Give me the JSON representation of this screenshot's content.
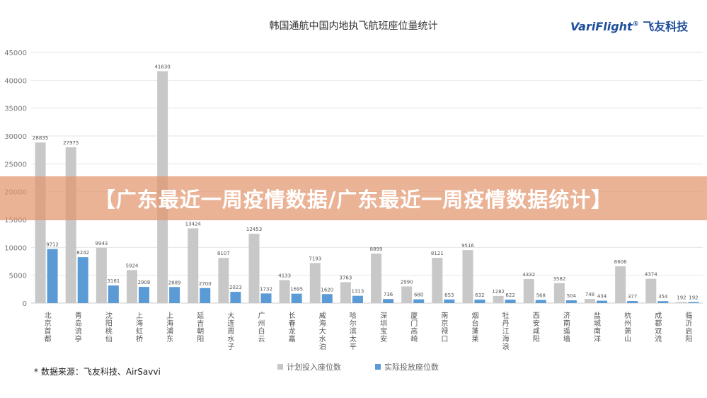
{
  "colors": {
    "planned": "#c8c8c8",
    "actual": "#5b9bd5",
    "axis": "#cccccc",
    "grid": "#e6e6e6"
  },
  "banner": {
    "text": "【广东最近一周疫情数据/广东最近一周疫情数据统计】"
  },
  "logo": {
    "brand": "VariFlight",
    "mark": "®",
    "cn": "飞友科技"
  },
  "source": "* 数据来源：飞友科技、AirSavvi",
  "chart_data": {
    "type": "bar",
    "title": "韩国通航中国内地执飞航班座位量统计",
    "xlabel": "",
    "ylabel": "",
    "ylim": [
      0,
      45000
    ],
    "yticks": [
      0,
      5000,
      10000,
      15000,
      20000,
      25000,
      30000,
      35000,
      40000,
      45000
    ],
    "categories": [
      "北京首都",
      "青岛流亭",
      "沈阳桃仙",
      "上海虹桥",
      "上海浦东",
      "延吉朝阳",
      "大连周水子",
      "广州白云",
      "长春龙嘉",
      "威海大水泊",
      "哈尔滨太平",
      "深圳宝安",
      "厦门高崎",
      "南京禄口",
      "烟台蓬莱",
      "牡丹江海浪",
      "西安咸阳",
      "济南遥墙",
      "盐城南洋",
      "杭州萧山",
      "成都双流",
      "临沂启阳"
    ],
    "series": [
      {
        "name": "计划投入座位数",
        "color": "#c8c8c8",
        "values": [
          28835,
          27975,
          9943,
          5924,
          41630,
          13424,
          8107,
          12453,
          4133,
          7193,
          3763,
          8899,
          2990,
          8121,
          9516,
          1282,
          4332,
          3582,
          748,
          6606,
          4374,
          192
        ],
        "labels": [
          "28835",
          "27975",
          "9943",
          "5924",
          "41630",
          "13424",
          "8107",
          "12453",
          "4133",
          "7193",
          "3763",
          "8899",
          "2990",
          "8121",
          "9516",
          "1282",
          "4332",
          "3582",
          "748",
          "6606",
          "4374",
          "192"
        ]
      },
      {
        "name": "实际投放座位数",
        "color": "#5b9bd5",
        "values": [
          9712,
          8242,
          3161,
          2908,
          2889,
          2700,
          2023,
          1732,
          1695,
          1620,
          1313,
          736,
          680,
          653,
          632,
          622,
          568,
          504,
          434,
          377,
          354,
          192
        ],
        "labels": [
          "9712",
          "8242",
          "3161",
          "2908",
          "2889",
          "2700",
          "2023",
          "1732",
          "1695",
          "1620",
          "1313",
          "736",
          "680",
          "653",
          "632",
          "622",
          "568",
          "504",
          "434",
          "377",
          "354",
          "192"
        ]
      }
    ],
    "legend_position": "bottom"
  }
}
